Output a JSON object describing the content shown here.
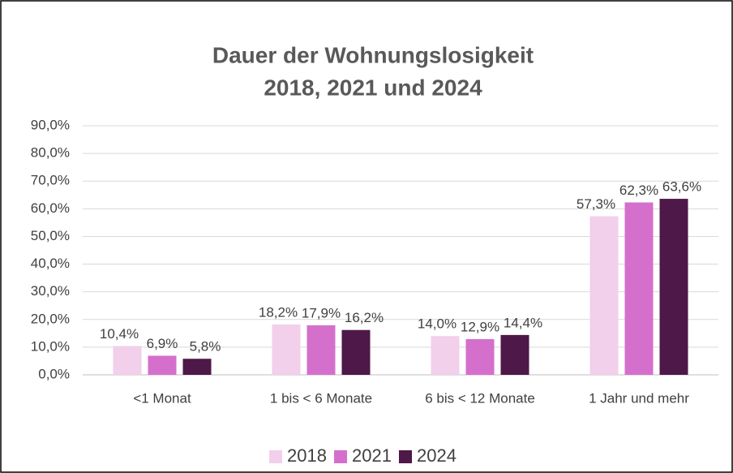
{
  "chart_data": {
    "type": "bar",
    "title": [
      "Dauer der Wohnungslosigkeit",
      "2018, 2021 und 2024"
    ],
    "categories": [
      "<1 Monat",
      "1 bis < 6 Monate",
      "6 bis < 12 Monate",
      "1 Jahr und mehr"
    ],
    "series": [
      {
        "name": "2018",
        "color": "#f2cfea",
        "values": [
          10.4,
          18.2,
          14.0,
          57.3
        ],
        "value_labels": [
          "10,4%",
          "18,2%",
          "14,0%",
          "57,3%"
        ]
      },
      {
        "name": "2021",
        "color": "#d56fcc",
        "values": [
          6.9,
          17.9,
          12.9,
          62.3
        ],
        "value_labels": [
          "6,9%",
          "17,9%",
          "12,9%",
          "62,3%"
        ]
      },
      {
        "name": "2024",
        "color": "#4e1848",
        "values": [
          5.8,
          16.2,
          14.4,
          63.6
        ],
        "value_labels": [
          "5,8%",
          "16,2%",
          "14,4%",
          "63,6%"
        ]
      }
    ],
    "ylim": [
      0,
      90
    ],
    "yticks": [
      {
        "value": 0,
        "label": "0,0%"
      },
      {
        "value": 10,
        "label": "10,0%"
      },
      {
        "value": 20,
        "label": "20,0%"
      },
      {
        "value": 30,
        "label": "30,0%"
      },
      {
        "value": 40,
        "label": "40,0%"
      },
      {
        "value": 50,
        "label": "50,0%"
      },
      {
        "value": 60,
        "label": "60,0%"
      },
      {
        "value": 70,
        "label": "70,0%"
      },
      {
        "value": 80,
        "label": "80,0%"
      },
      {
        "value": 90,
        "label": "90,0%"
      }
    ],
    "grid": true,
    "legend": "bottom"
  }
}
